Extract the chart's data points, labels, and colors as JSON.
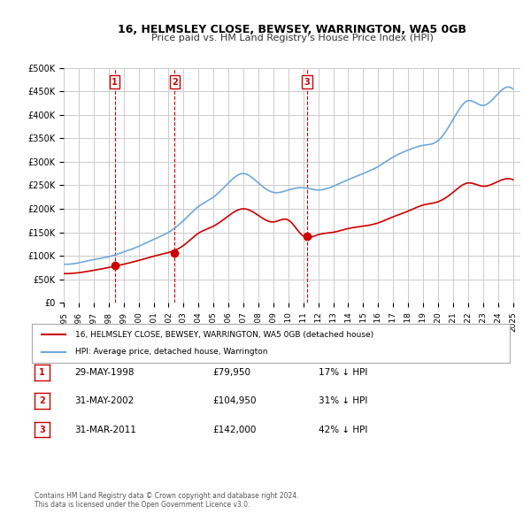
{
  "title": "16, HELMSLEY CLOSE, BEWSEY, WARRINGTON, WA5 0GB",
  "subtitle": "Price paid vs. HM Land Registry's House Price Index (HPI)",
  "ylim": [
    0,
    500000
  ],
  "yticks": [
    0,
    50000,
    100000,
    150000,
    200000,
    250000,
    300000,
    350000,
    400000,
    450000,
    500000
  ],
  "xlabel_years": [
    "1995",
    "1996",
    "1997",
    "1998",
    "1999",
    "2000",
    "2001",
    "2002",
    "2003",
    "2004",
    "2005",
    "2006",
    "2007",
    "2008",
    "2009",
    "2010",
    "2011",
    "2012",
    "2013",
    "2014",
    "2015",
    "2016",
    "2017",
    "2018",
    "2019",
    "2020",
    "2021",
    "2022",
    "2023",
    "2024",
    "2025"
  ],
  "sales": [
    {
      "date": 1998.41,
      "price": 79950,
      "label": "1"
    },
    {
      "date": 2002.41,
      "price": 104950,
      "label": "2"
    },
    {
      "date": 2011.24,
      "price": 142000,
      "label": "3"
    }
  ],
  "legend_line1": "16, HELMSLEY CLOSE, BEWSEY, WARRINGTON, WA5 0GB (detached house)",
  "legend_line2": "HPI: Average price, detached house, Warrington",
  "table": [
    {
      "num": "1",
      "date": "29-MAY-1998",
      "price": "£79,950",
      "note": "17% ↓ HPI"
    },
    {
      "num": "2",
      "date": "31-MAY-2002",
      "price": "£104,950",
      "note": "31% ↓ HPI"
    },
    {
      "num": "3",
      "date": "31-MAR-2011",
      "price": "£142,000",
      "note": "42% ↓ HPI"
    }
  ],
  "footnote": "Contains HM Land Registry data © Crown copyright and database right 2024.\nThis data is licensed under the Open Government Licence v3.0.",
  "hpi_color": "#6fa8dc",
  "price_color": "#cc0000",
  "sale_marker_color": "#cc0000",
  "vline_color": "#cc0000",
  "grid_color": "#cccccc",
  "bg_color": "#ffffff"
}
